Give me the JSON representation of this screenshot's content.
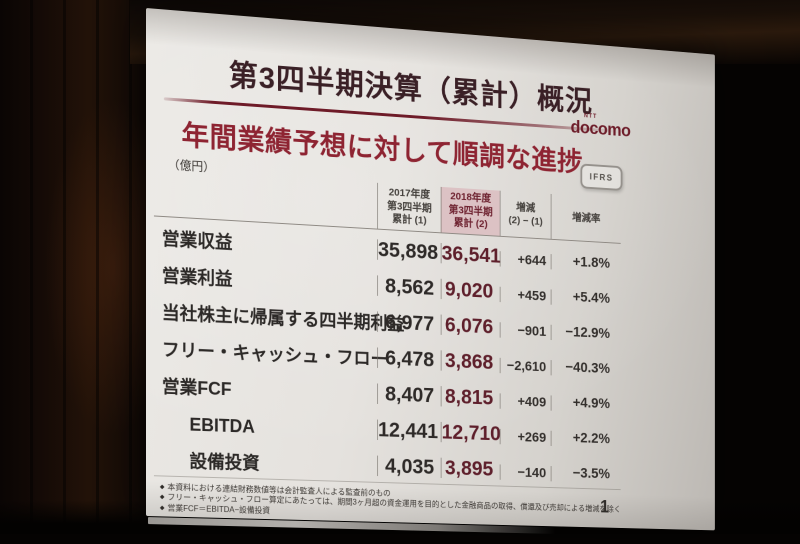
{
  "slide": {
    "title": "第3四半期決算（累計）概況",
    "subtitle": "年間業績予想に対して順調な進捗",
    "unit_label": "（億円）",
    "ifrs_badge": "IFRS",
    "logo": {
      "ntt": "NTT",
      "company": "docomo"
    },
    "table": {
      "headers": [
        {
          "lines": [
            "2017年度",
            "第3四半期",
            "累計 (1)"
          ]
        },
        {
          "lines": [
            "2018年度",
            "第3四半期",
            "累計 (2)"
          ]
        },
        {
          "lines": [
            "増減",
            "(2) − (1)"
          ]
        },
        {
          "lines": [
            "増減率"
          ]
        }
      ],
      "rows": [
        {
          "label": "営業収益",
          "indent": false,
          "fy2017": "35,898",
          "fy2018": "36,541",
          "change": "+644",
          "rate": "+1.8%"
        },
        {
          "label": "営業利益",
          "indent": false,
          "fy2017": "8,562",
          "fy2018": "9,020",
          "change": "+459",
          "rate": "+5.4%"
        },
        {
          "label": "当社株主に帰属する四半期利益",
          "indent": false,
          "fy2017": "6,977",
          "fy2018": "6,076",
          "change": "−901",
          "rate": "−12.9%"
        },
        {
          "label": "フリー・キャッシュ・フロー",
          "indent": false,
          "fy2017": "6,478",
          "fy2018": "3,868",
          "change": "−2,610",
          "rate": "−40.3%"
        },
        {
          "label": "営業FCF",
          "indent": false,
          "fy2017": "8,407",
          "fy2018": "8,815",
          "change": "+409",
          "rate": "+4.9%"
        },
        {
          "label": "EBITDA",
          "indent": true,
          "fy2017": "12,441",
          "fy2018": "12,710",
          "change": "+269",
          "rate": "+2.2%"
        },
        {
          "label": "設備投資",
          "indent": true,
          "fy2017": "4,035",
          "fy2018": "3,895",
          "change": "−140",
          "rate": "−3.5%"
        }
      ]
    },
    "footnote_bullet": "◆",
    "footnotes": [
      "本資料における連結財務数値等は会計監査人による監査前のもの",
      "フリー・キャッシュ・フロー算定にあたっては、期間3ヶ月超の資金運用を目的とした金融商品の取得、償還及び売却による増減を除く",
      "営業FCF＝EBITDA−設備投資"
    ],
    "page_number": "1"
  },
  "colors": {
    "accent_red": "#8e2432",
    "title_maroon": "#3a2026",
    "highlight_value_text": "#5e1f2b",
    "highlight_header_bg": "#dcc2c4",
    "highlight_header_text": "#6e2230",
    "slide_background": "#e5e2de",
    "room_background": "#050302"
  },
  "chart_data": {
    "type": "table",
    "title": "第3四半期決算（累計）概況",
    "subtitle": "年間業績予想に対して順調な進捗",
    "unit": "億円",
    "accounting_standard": "IFRS",
    "columns": [
      "2017年度 第3四半期 累計 (1)",
      "2018年度 第3四半期 累計 (2)",
      "増減 (2)−(1)",
      "増減率"
    ],
    "rows": [
      {
        "item": "営業収益",
        "fy2017_q3": 35898,
        "fy2018_q3": 36541,
        "change": 644,
        "change_rate_pct": 1.8
      },
      {
        "item": "営業利益",
        "fy2017_q3": 8562,
        "fy2018_q3": 9020,
        "change": 459,
        "change_rate_pct": 5.4
      },
      {
        "item": "当社株主に帰属する四半期利益",
        "fy2017_q3": 6977,
        "fy2018_q3": 6076,
        "change": -901,
        "change_rate_pct": -12.9
      },
      {
        "item": "フリー・キャッシュ・フロー",
        "fy2017_q3": 6478,
        "fy2018_q3": 3868,
        "change": -2610,
        "change_rate_pct": -40.3
      },
      {
        "item": "営業FCF",
        "fy2017_q3": 8407,
        "fy2018_q3": 8815,
        "change": 409,
        "change_rate_pct": 4.9
      },
      {
        "item": "EBITDA",
        "fy2017_q3": 12441,
        "fy2018_q3": 12710,
        "change": 269,
        "change_rate_pct": 2.2
      },
      {
        "item": "設備投資",
        "fy2017_q3": 4035,
        "fy2018_q3": 3895,
        "change": -140,
        "change_rate_pct": -3.5
      }
    ]
  }
}
